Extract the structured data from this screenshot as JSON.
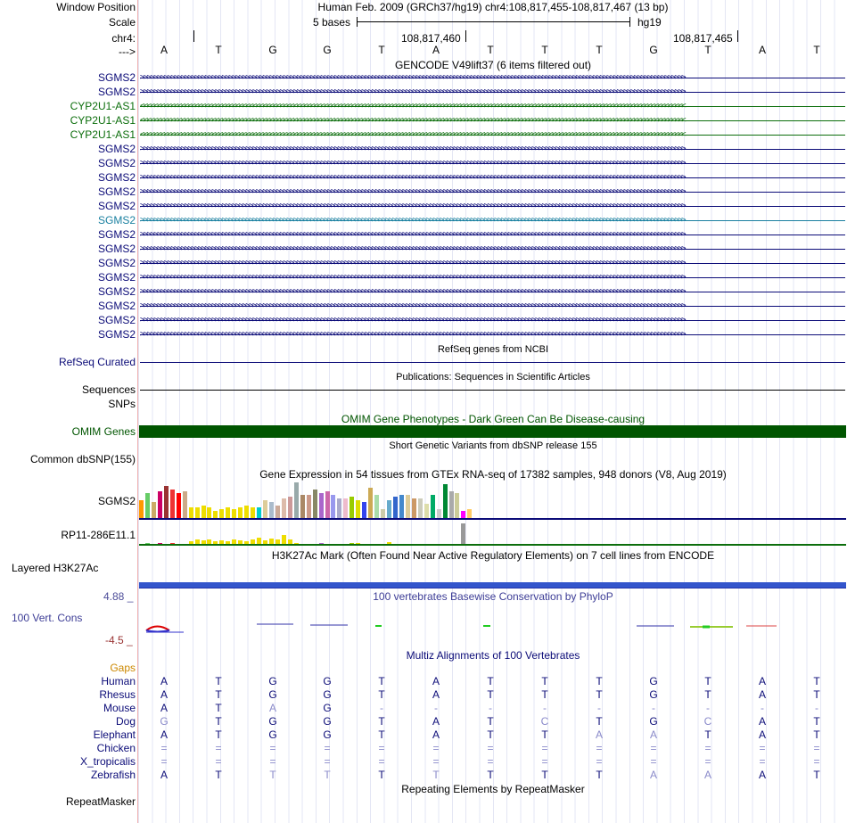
{
  "header": {
    "window_position_label": "Window Position",
    "window_position_value": "Human Feb. 2009 (GRCh37/hg19)   chr4:108,817,455-108,817,467 (13 bp)",
    "scale_label": "Scale",
    "scale_value": "5 bases",
    "scale_assembly": "hg19",
    "chrom_label": "chr4:",
    "coord_1": "108,817,460",
    "coord_2": "108,817,465",
    "strand_label": "--->"
  },
  "bases": [
    "A",
    "T",
    "G",
    "G",
    "T",
    "A",
    "T",
    "T",
    "T",
    "G",
    "T",
    "A",
    "T"
  ],
  "gencode": {
    "title": "GENCODE V49lift37 (6 items filtered out)",
    "items": [
      {
        "name": "SGMS2",
        "strand": "+",
        "color": "#0c0c78"
      },
      {
        "name": "SGMS2",
        "strand": "+",
        "color": "#0c0c78"
      },
      {
        "name": "CYP2U1-AS1",
        "strand": "-",
        "color": "#0c6e0c"
      },
      {
        "name": "CYP2U1-AS1",
        "strand": "-",
        "color": "#0c6e0c"
      },
      {
        "name": "CYP2U1-AS1",
        "strand": "-",
        "color": "#0c6e0c"
      },
      {
        "name": "SGMS2",
        "strand": "+",
        "color": "#0c0c78"
      },
      {
        "name": "SGMS2",
        "strand": "+",
        "color": "#0c0c78"
      },
      {
        "name": "SGMS2",
        "strand": "+",
        "color": "#0c0c78"
      },
      {
        "name": "SGMS2",
        "strand": "+",
        "color": "#0c0c78"
      },
      {
        "name": "SGMS2",
        "strand": "+",
        "color": "#0c0c78"
      },
      {
        "name": "SGMS2",
        "strand": "+",
        "color": "#1a80a0"
      },
      {
        "name": "SGMS2",
        "strand": "+",
        "color": "#0c0c78"
      },
      {
        "name": "SGMS2",
        "strand": "+",
        "color": "#0c0c78"
      },
      {
        "name": "SGMS2",
        "strand": "+",
        "color": "#0c0c78"
      },
      {
        "name": "SGMS2",
        "strand": "+",
        "color": "#0c0c78"
      },
      {
        "name": "SGMS2",
        "strand": "+",
        "color": "#0c0c78"
      },
      {
        "name": "SGMS2",
        "strand": "+",
        "color": "#0c0c78"
      },
      {
        "name": "SGMS2",
        "strand": "+",
        "color": "#0c0c78"
      },
      {
        "name": "SGMS2",
        "strand": "+",
        "color": "#0c0c78"
      }
    ]
  },
  "refseq": {
    "title": "RefSeq genes from NCBI",
    "label": "RefSeq Curated"
  },
  "publications": {
    "title": "Publications: Sequences in Scientific Articles",
    "label_1": "Sequences",
    "label_2": "SNPs"
  },
  "omim": {
    "title": "OMIM Gene Phenotypes - Dark Green Can Be Disease-causing",
    "label": "OMIM Genes",
    "color": "#005500"
  },
  "dbsnp": {
    "title": "Short Genetic Variants from dbSNP release 155",
    "label": "Common dbSNP(155)"
  },
  "gtex": {
    "title": "Gene Expression in 54 tissues from GTEx RNA-seq of 17382 samples, 948 donors (V8, Aug 2019)",
    "genes": [
      {
        "name": "SGMS2",
        "values": [
          0.5,
          0.7,
          0.45,
          0.75,
          0.9,
          0.8,
          0.7,
          0.75,
          0.3,
          0.3,
          0.35,
          0.3,
          0.2,
          0.25,
          0.3,
          0.25,
          0.3,
          0.35,
          0.3,
          0.3,
          0.5,
          0.45,
          0.35,
          0.55,
          0.6,
          1.0,
          0.65,
          0.65,
          0.8,
          0.7,
          0.75,
          0.65,
          0.55,
          0.55,
          0.6,
          0.5,
          0.45,
          0.85,
          0.65,
          0.25,
          0.5,
          0.6,
          0.65,
          0.65,
          0.55,
          0.55,
          0.4,
          0.65,
          0.25,
          0.95,
          0.75,
          0.7,
          0.2,
          0.25
        ],
        "colors": [
          "#ff9900",
          "#66cc66",
          "#ccaa66",
          "#cc0066",
          "#993333",
          "#ee3333",
          "#ff0000",
          "#ccaa88",
          "#eedd00",
          "#eedd00",
          "#eedd00",
          "#eedd00",
          "#eedd00",
          "#eedd00",
          "#eedd00",
          "#eedd00",
          "#eedd00",
          "#eedd00",
          "#eedd00",
          "#00cccc",
          "#ddcc99",
          "#aabbcc",
          "#ccaa99",
          "#ddbbaa",
          "#cc9999",
          "#99aaaa",
          "#aa8866",
          "#cc9988",
          "#888866",
          "#aa66cc",
          "#cc66aa",
          "#9999ee",
          "#aaaacc",
          "#eebbcc",
          "#99cc00",
          "#dddd00",
          "#3344ee",
          "#ccaa55",
          "#aaddaa",
          "#ccccaa",
          "#66aacc",
          "#3366cc",
          "#4488cc",
          "#ddcc99",
          "#cc9966",
          "#ccccbb",
          "#ddddaa",
          "#00aa66",
          "#cccccc",
          "#008833",
          "#aaaaaa",
          "#cccc99",
          "#ff00ff",
          "#ffcc66"
        ]
      },
      {
        "name": "RP11-286E11.1",
        "values": [
          0,
          0.05,
          0,
          0.05,
          0,
          0.05,
          0,
          0,
          0.12,
          0.2,
          0.15,
          0.2,
          0.12,
          0.15,
          0.12,
          0.2,
          0.15,
          0.12,
          0.2,
          0.3,
          0.15,
          0.25,
          0.2,
          0.4,
          0.2,
          0.05,
          0,
          0,
          0,
          0.05,
          0,
          0,
          0,
          0,
          0.02,
          0.05,
          0,
          0,
          0,
          0,
          0.1,
          0,
          0,
          0,
          0,
          0,
          0,
          0,
          0,
          0,
          0,
          0,
          0.95,
          0
        ],
        "colors": [
          "#ff9900",
          "#66cc66",
          "#ccaa66",
          "#cc0066",
          "#993333",
          "#ee3333",
          "#ff0000",
          "#ccaa88",
          "#eedd00",
          "#eedd00",
          "#eedd00",
          "#eedd00",
          "#eedd00",
          "#eedd00",
          "#eedd00",
          "#eedd00",
          "#eedd00",
          "#eedd00",
          "#eedd00",
          "#eedd00",
          "#eedd00",
          "#eedd00",
          "#eedd00",
          "#eedd00",
          "#eedd00",
          "#eedd00",
          "#aa8866",
          "#cc9988",
          "#888866",
          "#aa66cc",
          "#cc66aa",
          "#9999ee",
          "#aaaacc",
          "#eebbcc",
          "#99cc00",
          "#dddd00",
          "#3344ee",
          "#ccaa55",
          "#aaddaa",
          "#ccccaa",
          "#eedd00",
          "#3366cc",
          "#4488cc",
          "#ddcc99",
          "#cc9966",
          "#ccccbb",
          "#ddddaa",
          "#00aa66",
          "#cccccc",
          "#008833",
          "#aaaaaa",
          "#cccc99",
          "#999999",
          "#ffcc66"
        ]
      }
    ]
  },
  "h3k27ac": {
    "title": "H3K27Ac Mark (Often Found Near Active Regulatory Elements) on 7 cell lines from ENCODE",
    "label": "Layered H3K27Ac",
    "color": "#3355cc"
  },
  "conservation": {
    "title": "100 vertebrates Basewise Conservation by PhyloP",
    "label": "100 Vert. Cons",
    "max_label": "4.88 _",
    "min_label": "-4.5 _"
  },
  "multiz": {
    "title": "Multiz Alignments of 100 Vertebrates",
    "gaps_label": "Gaps",
    "species": [
      {
        "name": "Human",
        "bases": [
          "A",
          "T",
          "G",
          "G",
          "T",
          "A",
          "T",
          "T",
          "T",
          "G",
          "T",
          "A",
          "T"
        ],
        "dim": []
      },
      {
        "name": "Rhesus",
        "bases": [
          "A",
          "T",
          "G",
          "G",
          "T",
          "A",
          "T",
          "T",
          "T",
          "G",
          "T",
          "A",
          "T"
        ],
        "dim": []
      },
      {
        "name": "Mouse",
        "bases": [
          "A",
          "T",
          "A",
          "G",
          "-",
          "-",
          "-",
          "-",
          "-",
          "-",
          "-",
          "-",
          "-"
        ],
        "dim": [
          2
        ]
      },
      {
        "name": "Dog",
        "bases": [
          "G",
          "T",
          "G",
          "G",
          "T",
          "A",
          "T",
          "C",
          "T",
          "G",
          "C",
          "A",
          "T"
        ],
        "dim": [
          0,
          7,
          10
        ]
      },
      {
        "name": "Elephant",
        "bases": [
          "A",
          "T",
          "G",
          "G",
          "T",
          "A",
          "T",
          "T",
          "A",
          "A",
          "T",
          "A",
          "T"
        ],
        "dim": [
          8,
          9
        ]
      },
      {
        "name": "Chicken",
        "bases": [
          "=",
          "=",
          "=",
          "=",
          "=",
          "=",
          "=",
          "=",
          "=",
          "=",
          "=",
          "=",
          "="
        ],
        "dim": []
      },
      {
        "name": "X_tropicalis",
        "bases": [
          "=",
          "=",
          "=",
          "=",
          "=",
          "=",
          "=",
          "=",
          "=",
          "=",
          "=",
          "=",
          "="
        ],
        "dim": []
      },
      {
        "name": "Zebrafish",
        "bases": [
          "A",
          "T",
          "T",
          "T",
          "T",
          "T",
          "T",
          "T",
          "T",
          "A",
          "A",
          "A",
          "T"
        ],
        "dim": [
          2,
          3,
          5,
          9,
          10
        ]
      }
    ]
  },
  "repeatmasker": {
    "title": "Repeating Elements by RepeatMasker",
    "label": "RepeatMasker"
  },
  "colors": {
    "gene_blue": "#0c0c78",
    "gene_green": "#0c6e0c",
    "omim": "#005500",
    "phylop_label": "#3d3d96",
    "multiz_label": "#0c0c78",
    "gaps_label": "#cc8800",
    "coord_max": "#4d4d99",
    "coord_min": "#993333"
  }
}
